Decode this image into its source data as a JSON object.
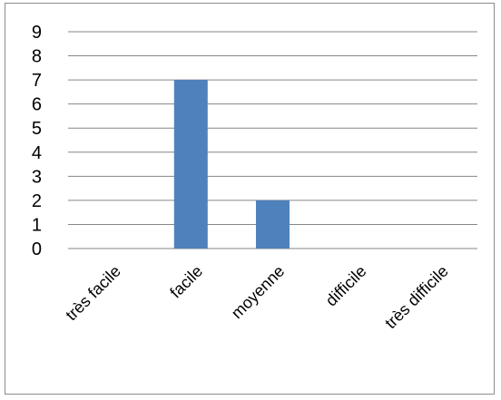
{
  "chart_data": {
    "type": "bar",
    "categories": [
      "très facile",
      "facile",
      "moyenne",
      "difficile",
      "très difficile"
    ],
    "values": [
      0,
      7,
      2,
      0,
      0
    ],
    "ylim": [
      0,
      9
    ],
    "yticks": [
      0,
      1,
      2,
      3,
      4,
      5,
      6,
      7,
      8,
      9
    ],
    "grid": true,
    "legend": "none",
    "bar_color": "#4f81bd",
    "grid_color": "#868686"
  }
}
